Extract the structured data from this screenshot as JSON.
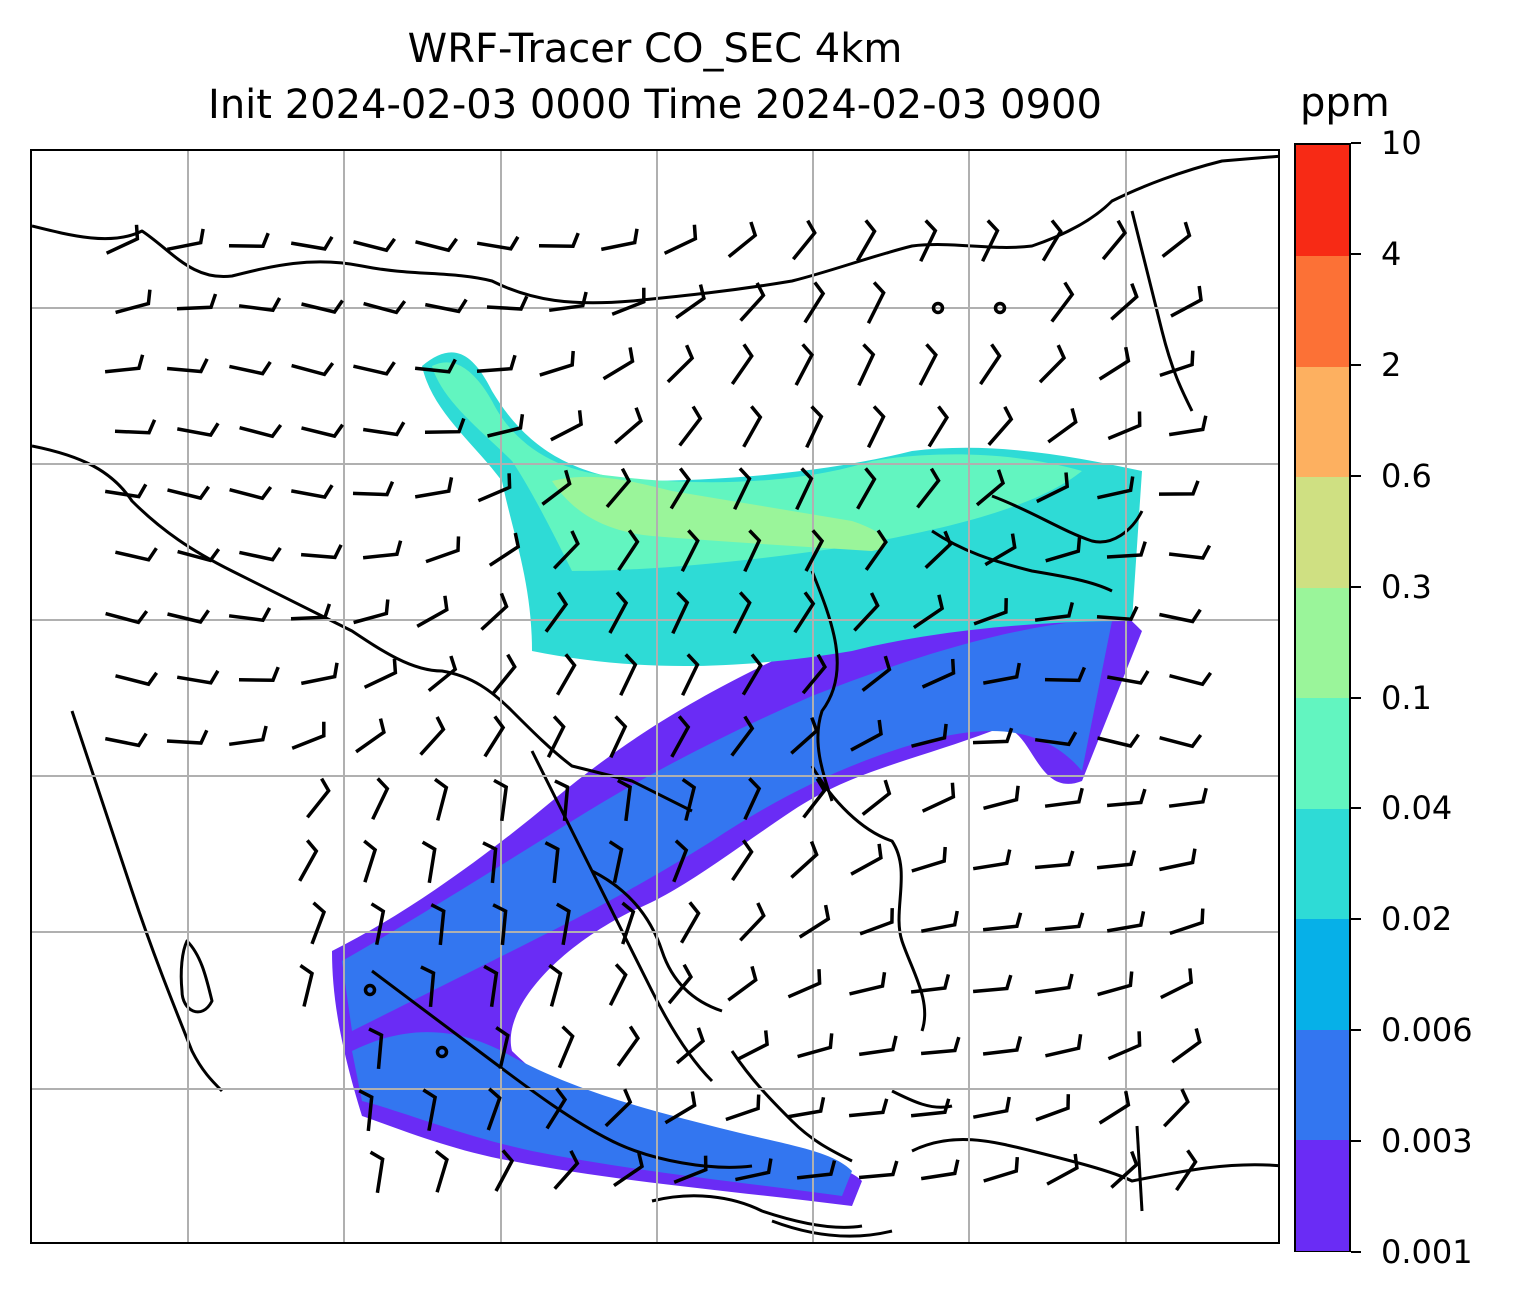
{
  "figure": {
    "title_line1": "WRF-Tracer CO_SEC 4km",
    "title_line2": "Init 2024-02-03 0000 Time 2024-02-03 0900"
  },
  "colorbar": {
    "unit": "ppm",
    "levels": [
      "0.001",
      "0.003",
      "0.006",
      "0.02",
      "0.04",
      "0.1",
      "0.3",
      "0.6",
      "2",
      "4",
      "10"
    ],
    "colors": [
      "#6a2cf5",
      "#3376f0",
      "#06b0e8",
      "#2edbd6",
      "#62f5c0",
      "#9af59a",
      "#cfe082",
      "#fdb060",
      "#fc7136",
      "#f72a15"
    ]
  },
  "map": {
    "projection": "Lambert conformal",
    "gridlines": true,
    "coastlines": true,
    "borders": true,
    "field": "CO_SEC tracer concentration (filled contours)",
    "overlay": "wind barbs"
  },
  "chart_data": {
    "type": "heatmap",
    "field": "CO_SEC",
    "units": "ppm",
    "levels": [
      0.001,
      0.003,
      0.006,
      0.02,
      0.04,
      0.1,
      0.3,
      0.6,
      2,
      4,
      10
    ]
  }
}
